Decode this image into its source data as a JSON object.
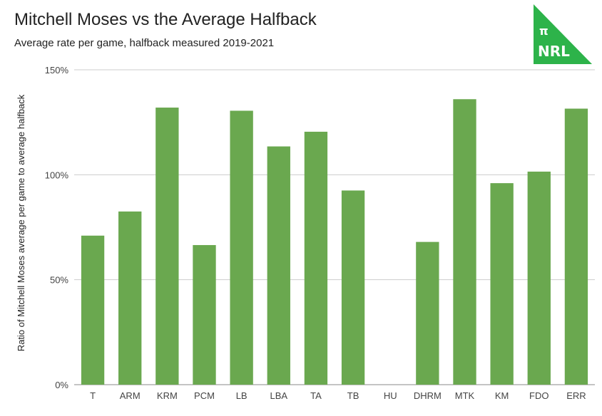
{
  "header": {
    "title": "Mitchell Moses vs the Average Halfback",
    "subtitle": "Average rate per game, halfback measured 2019-2021"
  },
  "logo": {
    "symbol": "π",
    "text": "NRL",
    "color": "#2db34a"
  },
  "colors": {
    "bar": "#6aa84f",
    "grid": "#cccccc",
    "axis_text": "#444444"
  },
  "chart_data": {
    "type": "bar",
    "title": "Mitchell Moses vs the Average Halfback",
    "subtitle": "Average rate per game, halfback measured 2019-2021",
    "xlabel": "",
    "ylabel": "Ratio of Mitchell Moses average per game to average halfback",
    "ylim": [
      0,
      150
    ],
    "yticks": [
      0,
      50,
      100,
      150
    ],
    "ytick_labels": [
      "0%",
      "50%",
      "100%",
      "150%"
    ],
    "grid": true,
    "categories": [
      "T",
      "ARM",
      "KRM",
      "PCM",
      "LB",
      "LBA",
      "TA",
      "TB",
      "HU",
      "DHRM",
      "MTK",
      "KM",
      "FDO",
      "ERR"
    ],
    "values": [
      71,
      82.5,
      132,
      66.5,
      130.5,
      113.5,
      120.5,
      92.5,
      0,
      68,
      136,
      96,
      101.5,
      131.5
    ]
  }
}
